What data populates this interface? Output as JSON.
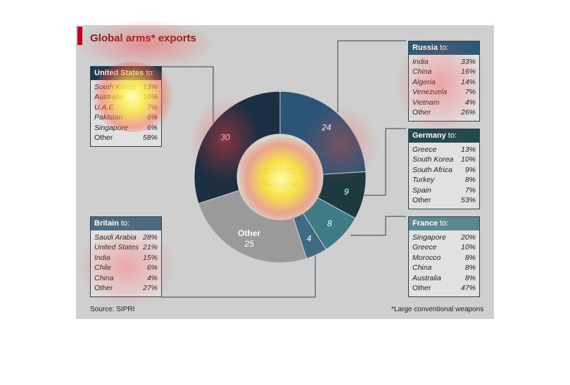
{
  "title": "Global arms",
  "title_star": "*",
  "title_suffix": " exports",
  "source": "Source: SIPRI",
  "footnote": "*Large conventional weapons",
  "center_label_line1": "2007-11,",
  "center_label_line2": "% of total",
  "chart_data": {
    "type": "pie",
    "categories": [
      "Russia",
      "Germany",
      "France",
      "Britain",
      "Other",
      "United States"
    ],
    "values": [
      24,
      9,
      8,
      4,
      25,
      30
    ],
    "value_labels": [
      "24",
      "9",
      "8",
      "4",
      "25",
      "30"
    ],
    "other_label": "Other",
    "colors": [
      "#2c5477",
      "#1d3a40",
      "#3f7b86",
      "#3e6a83",
      "#9a9a9a",
      "#1b2e42"
    ]
  },
  "boxes": {
    "us": {
      "country": "United States",
      "to": " to:",
      "rows": [
        {
          "name": "South Korea",
          "pct": "13%"
        },
        {
          "name": "Australia",
          "pct": "10%"
        },
        {
          "name": "U.A.E.",
          "pct": "7%"
        },
        {
          "name": "Pakistan",
          "pct": "6%"
        },
        {
          "name": "Singapore",
          "pct": "6%"
        },
        {
          "name": "Other",
          "pct": "58%"
        }
      ]
    },
    "russia": {
      "country": "Russia",
      "to": " to:",
      "rows": [
        {
          "name": "India",
          "pct": "33%"
        },
        {
          "name": "China",
          "pct": "16%"
        },
        {
          "name": "Algeria",
          "pct": "14%"
        },
        {
          "name": "Venezuela",
          "pct": "7%"
        },
        {
          "name": "Vietnam",
          "pct": "4%"
        },
        {
          "name": "Other",
          "pct": "26%"
        }
      ]
    },
    "germany": {
      "country": "Germany",
      "to": " to:",
      "rows": [
        {
          "name": "Greece",
          "pct": "13%"
        },
        {
          "name": "South Korea",
          "pct": "10%"
        },
        {
          "name": "South Africa",
          "pct": "9%"
        },
        {
          "name": "Turkey",
          "pct": "8%"
        },
        {
          "name": "Spain",
          "pct": "7%"
        },
        {
          "name": "Other",
          "pct": "53%"
        }
      ]
    },
    "britain": {
      "country": "Britain",
      "to": " to:",
      "rows": [
        {
          "name": "Saudi Arabia",
          "pct": "28%"
        },
        {
          "name": "United States",
          "pct": "21%"
        },
        {
          "name": "India",
          "pct": "15%"
        },
        {
          "name": "Chile",
          "pct": "6%"
        },
        {
          "name": "China",
          "pct": "4%"
        },
        {
          "name": "Other",
          "pct": "27%"
        }
      ]
    },
    "france": {
      "country": "France",
      "to": " to:",
      "rows": [
        {
          "name": "Singapore",
          "pct": "20%"
        },
        {
          "name": "Greece",
          "pct": "10%"
        },
        {
          "name": "Morocco",
          "pct": "8%"
        },
        {
          "name": "China",
          "pct": "8%"
        },
        {
          "name": "Australia",
          "pct": "8%"
        },
        {
          "name": "Other",
          "pct": "47%"
        }
      ]
    }
  },
  "colors": {
    "title": "#7a1a14",
    "accent_bar": "#c0001a",
    "panel": "#cfcfcf"
  }
}
